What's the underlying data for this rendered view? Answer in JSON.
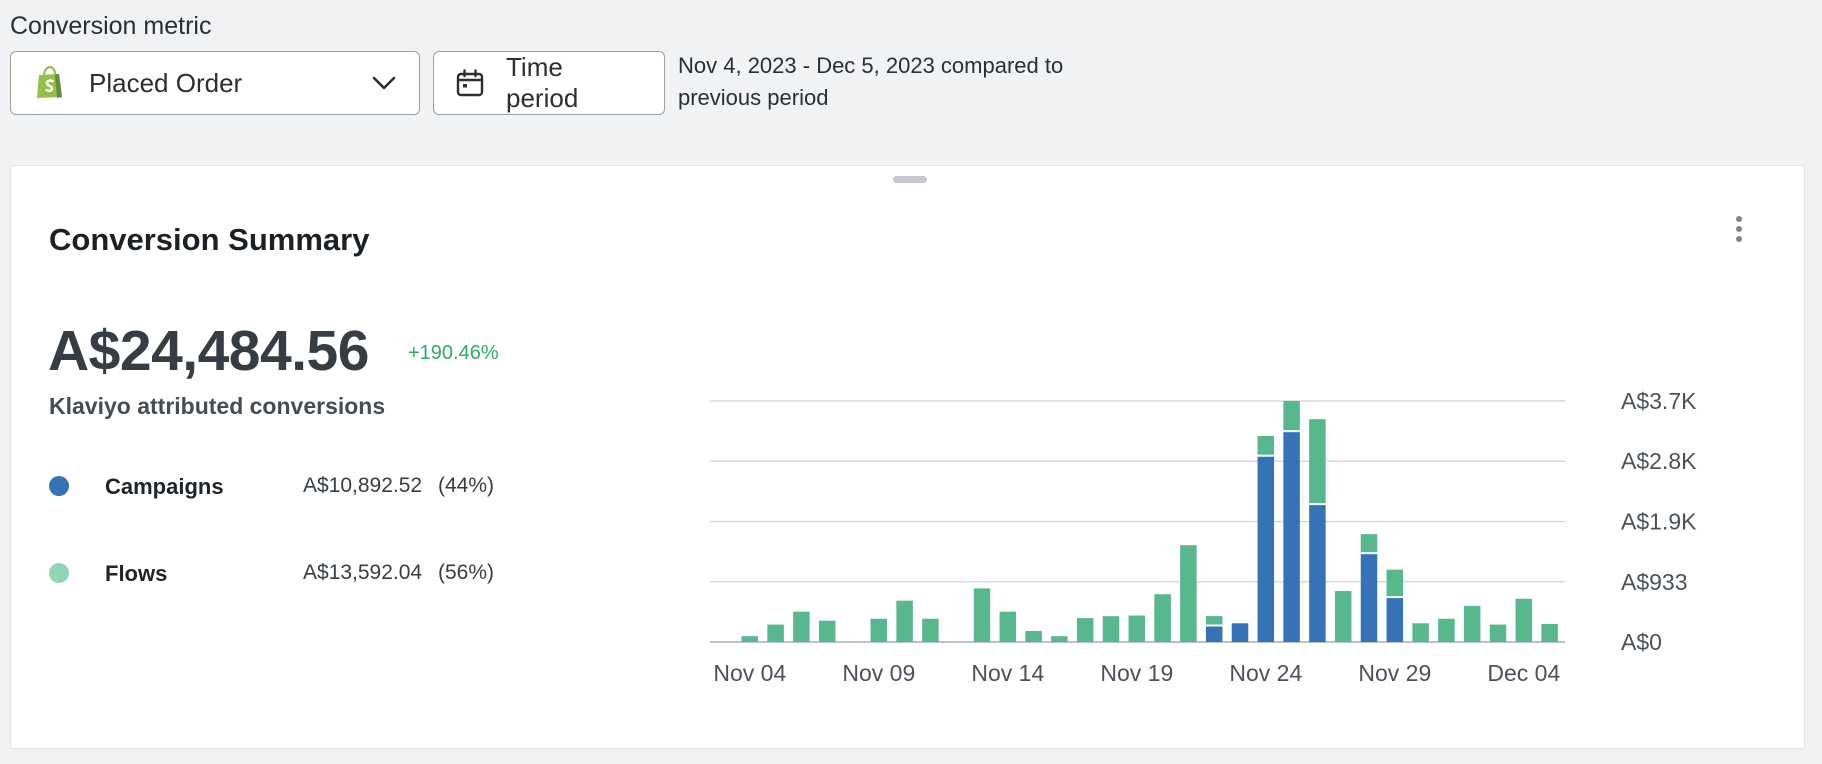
{
  "header": {
    "metric_label": "Conversion metric",
    "metric_value": "Placed Order",
    "time_period_label": "Time period",
    "date_range": "Nov 4, 2023 - Dec 5, 2023 compared to previous period"
  },
  "card": {
    "title": "Conversion Summary",
    "total_value": "A$24,484.56",
    "total_change": "+190.46%",
    "total_caption": "Klaviyo attributed conversions",
    "legend": [
      {
        "name": "Campaigns",
        "amount": "A$10,892.52",
        "pct": "(44%)",
        "color": "#3572b8"
      },
      {
        "name": "Flows",
        "amount": "A$13,592.04",
        "pct": "(56%)",
        "color": "#8fd6b6"
      }
    ]
  },
  "colors": {
    "campaigns_bar": "#3572b8",
    "flows_bar": "#58b88d",
    "positive": "#2dac63",
    "grid": "#cfd3d6"
  },
  "icons": {
    "metric": "shopify-bag-icon",
    "dropdown": "chevron-down-icon",
    "time": "calendar-icon",
    "menu": "kebab-menu-icon"
  },
  "chart_data": {
    "type": "bar",
    "stacked": true,
    "x_tick_labels": [
      "Nov 04",
      "Nov 09",
      "Nov 14",
      "Nov 19",
      "Nov 24",
      "Nov 29",
      "Dec 04"
    ],
    "y_tick_labels": [
      "A$0",
      "A$933",
      "A$1.9K",
      "A$2.8K",
      "A$3.7K"
    ],
    "y_ticks": [
      0,
      933,
      1866,
      2800,
      3733
    ],
    "ylim": [
      0,
      3733
    ],
    "grid": true,
    "categories": [
      "Nov 03",
      "Nov 04",
      "Nov 05",
      "Nov 06",
      "Nov 07",
      "Nov 08",
      "Nov 09",
      "Nov 10",
      "Nov 11",
      "Nov 12",
      "Nov 13",
      "Nov 14",
      "Nov 15",
      "Nov 16",
      "Nov 17",
      "Nov 18",
      "Nov 19",
      "Nov 20",
      "Nov 21",
      "Nov 22",
      "Nov 23",
      "Nov 24",
      "Nov 25",
      "Nov 26",
      "Nov 27",
      "Nov 28",
      "Nov 29",
      "Nov 30",
      "Dec 01",
      "Dec 02",
      "Dec 03",
      "Dec 04",
      "Dec 05"
    ],
    "series": [
      {
        "name": "Campaigns",
        "values": [
          0,
          0,
          0,
          0,
          0,
          0,
          0,
          0,
          0,
          0,
          0,
          0,
          0,
          0,
          0,
          0,
          0,
          0,
          0,
          240,
          290,
          2870,
          3250,
          2120,
          0,
          1360,
          680,
          0,
          0,
          0,
          0,
          0,
          0
        ]
      },
      {
        "name": "Flows",
        "values": [
          0,
          90,
          270,
          470,
          330,
          0,
          360,
          640,
          360,
          0,
          830,
          470,
          170,
          90,
          370,
          400,
          410,
          740,
          1500,
          130,
          0,
          290,
          480,
          1300,
          790,
          280,
          410,
          290,
          360,
          560,
          270,
          670,
          280
        ]
      }
    ]
  }
}
